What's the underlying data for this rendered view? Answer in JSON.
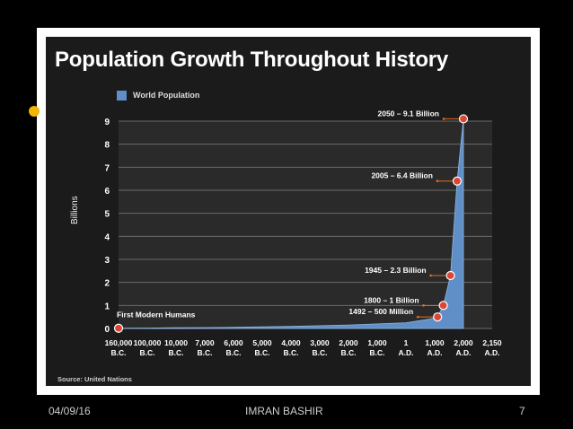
{
  "chart_data": {
    "type": "area",
    "title": "Population Growth Throughout History",
    "ylabel": "Billions",
    "xlabel": "",
    "ylim": [
      0,
      9
    ],
    "yticks": [
      "0",
      "1",
      "2",
      "3",
      "4",
      "5",
      "6",
      "7",
      "8",
      "9"
    ],
    "grid": true,
    "legend_position": "top-left",
    "series": [
      {
        "name": "World Population",
        "color": "#5f8fc6",
        "points": [
          [
            0,
            0.01
          ],
          [
            1,
            0.02
          ],
          [
            2,
            0.03
          ],
          [
            3,
            0.04
          ],
          [
            4,
            0.05
          ],
          [
            5,
            0.07
          ],
          [
            6,
            0.09
          ],
          [
            7,
            0.12
          ],
          [
            8,
            0.15
          ],
          [
            9,
            0.2
          ],
          [
            10,
            0.25
          ],
          [
            10.8,
            0.4
          ],
          [
            11.1,
            0.5
          ],
          [
            11.3,
            1.0
          ],
          [
            11.55,
            2.3
          ],
          [
            11.78,
            6.4
          ],
          [
            12,
            9.1
          ]
        ]
      }
    ],
    "x_tick_labels": [
      {
        "l1": "160,000",
        "l2": "B.C."
      },
      {
        "l1": "100,000",
        "l2": "B.C."
      },
      {
        "l1": "10,000",
        "l2": "B.C."
      },
      {
        "l1": "7,000",
        "l2": "B.C."
      },
      {
        "l1": "6,000",
        "l2": "B.C."
      },
      {
        "l1": "5,000",
        "l2": "B.C."
      },
      {
        "l1": "4,000",
        "l2": "B.C."
      },
      {
        "l1": "3,000",
        "l2": "B.C."
      },
      {
        "l1": "2,000",
        "l2": "B.C."
      },
      {
        "l1": "1,000",
        "l2": "B.C."
      },
      {
        "l1": "1",
        "l2": "A.D."
      },
      {
        "l1": "1,000",
        "l2": "A.D."
      },
      {
        "l1": "2,000",
        "l2": "A.D."
      },
      {
        "l1": "2,150",
        "l2": "A.D."
      }
    ],
    "annotations": [
      {
        "label": "First Modern Humans",
        "x": 0,
        "y": 0.01
      },
      {
        "label": "1492 – 500 Million",
        "x": 11.1,
        "y": 0.5
      },
      {
        "label": "1800 – 1 Billion",
        "x": 11.3,
        "y": 1.0
      },
      {
        "label": "1945 – 2.3 Billion",
        "x": 11.55,
        "y": 2.3
      },
      {
        "label": "2005 – 6.4 Billion",
        "x": 11.78,
        "y": 6.4
      },
      {
        "label": "2050 – 9.1 Billion",
        "x": 12,
        "y": 9.1
      }
    ],
    "source": "Source: United Nations"
  },
  "footer": {
    "date": "04/09/16",
    "author": "IMRAN BASHIR",
    "page": "7"
  }
}
